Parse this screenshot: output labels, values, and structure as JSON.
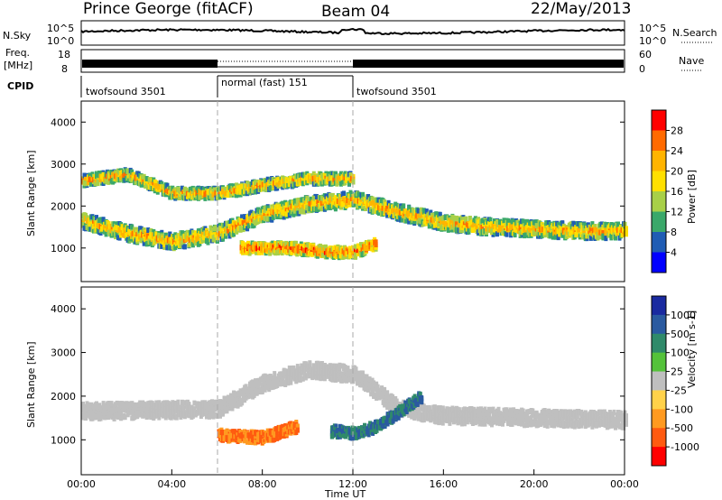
{
  "header": {
    "station": "Prince George (fitACF)",
    "beam": "Beam 04",
    "date": "22/May/2013"
  },
  "panels": {
    "nsky_label": "N.Sky",
    "nsky_ticks": [
      "10^5",
      "10^0"
    ],
    "nsearch_label": "N.Search",
    "freq_label_1": "Freq.",
    "freq_label_2": "[MHz]",
    "freq_ticks": [
      "18",
      "8"
    ],
    "nave_label": "Nave",
    "nave_ticks": [
      "60",
      "0"
    ],
    "cpid_label": "CPID"
  },
  "cpid_segments": [
    {
      "label": "twofsound 3501",
      "start_h": 0,
      "end_h": 6
    },
    {
      "label": "normal (fast) 151",
      "start_h": 6,
      "end_h": 12
    },
    {
      "label": "twofsound 3501",
      "start_h": 12,
      "end_h": 24
    }
  ],
  "chart_data": [
    {
      "type": "heatmap",
      "title": "Power",
      "xlabel": "Time UT",
      "ylabel": "Slant Range [km]",
      "xlim": [
        0,
        24
      ],
      "ylim": [
        200,
        4500
      ],
      "x_ticks": [
        "00:00",
        "04:00",
        "08:00",
        "12:00",
        "16:00",
        "20:00",
        "00:00"
      ],
      "y_ticks": [
        "1000",
        "2000",
        "3000",
        "4000"
      ],
      "colorbar_label": "Power [dB]",
      "colorbar_ticks": [
        "28",
        "24",
        "20",
        "16",
        "12",
        "8",
        "4"
      ],
      "colorbar_colors": [
        "#ff0000",
        "#ff6a00",
        "#ffb400",
        "#ffe000",
        "#a8d048",
        "#3aa86a",
        "#1f5cb4",
        "#0000ff"
      ],
      "bands": [
        {
          "name": "main",
          "ranges_km": [
            [
              0,
              1650
            ],
            [
              2,
              1350
            ],
            [
              4,
              1150
            ],
            [
              6,
              1350
            ],
            [
              8,
              1800
            ],
            [
              10,
              2050
            ],
            [
              12,
              2150
            ],
            [
              14,
              1850
            ],
            [
              16,
              1600
            ],
            [
              18,
              1500
            ],
            [
              20,
              1450
            ],
            [
              22,
              1400
            ],
            [
              24,
              1400
            ]
          ],
          "power_db": 24
        },
        {
          "name": "upper",
          "ranges_km": [
            [
              0,
              2600
            ],
            [
              2,
              2750
            ],
            [
              4,
              2300
            ],
            [
              6,
              2300
            ],
            [
              8,
              2500
            ],
            [
              10,
              2650
            ],
            [
              12,
              2650
            ]
          ],
          "power_db": 14
        },
        {
          "name": "near",
          "ranges_km": [
            [
              7,
              1000
            ],
            [
              9,
              1000
            ],
            [
              11,
              900
            ],
            [
              12,
              900
            ],
            [
              13,
              1100
            ]
          ],
          "power_db": 27
        }
      ]
    },
    {
      "type": "heatmap",
      "title": "Velocity",
      "xlabel": "Time UT",
      "ylabel": "Slant Range [km]",
      "xlim": [
        0,
        24
      ],
      "ylim": [
        200,
        4500
      ],
      "x_ticks": [
        "00:00",
        "04:00",
        "08:00",
        "12:00",
        "16:00",
        "20:00",
        "00:00"
      ],
      "y_ticks": [
        "1000",
        "2000",
        "3000",
        "4000"
      ],
      "colorbar_label": "Velocity [m s-1]",
      "colorbar_ticks": [
        "1000",
        "500",
        "100",
        "25",
        "-25",
        "-100",
        "-500",
        "-1000"
      ],
      "colorbar_colors": [
        "#1a2aa0",
        "#2a5aa0",
        "#2f8a6a",
        "#54c23a",
        "#bfbfbf",
        "#ffd24a",
        "#ff9a20",
        "#ff5a10",
        "#ff0000"
      ],
      "bands": [
        {
          "name": "ground-scatter",
          "ranges_km": [
            [
              0,
              1650
            ],
            [
              6,
              1700
            ],
            [
              8,
              2300
            ],
            [
              10,
              2600
            ],
            [
              12,
              2500
            ],
            [
              14,
              1700
            ],
            [
              16,
              1550
            ],
            [
              24,
              1450
            ]
          ],
          "velocity_ms": 0
        },
        {
          "name": "negative-flow",
          "ranges_km": [
            [
              6,
              1100
            ],
            [
              8,
              1050
            ],
            [
              9.5,
              1300
            ]
          ],
          "velocity_ms": -300
        },
        {
          "name": "positive-flow",
          "ranges_km": [
            [
              11,
              1200
            ],
            [
              12,
              1150
            ],
            [
              13,
              1300
            ],
            [
              15,
              2000
            ]
          ],
          "velocity_ms": 200
        }
      ]
    }
  ]
}
